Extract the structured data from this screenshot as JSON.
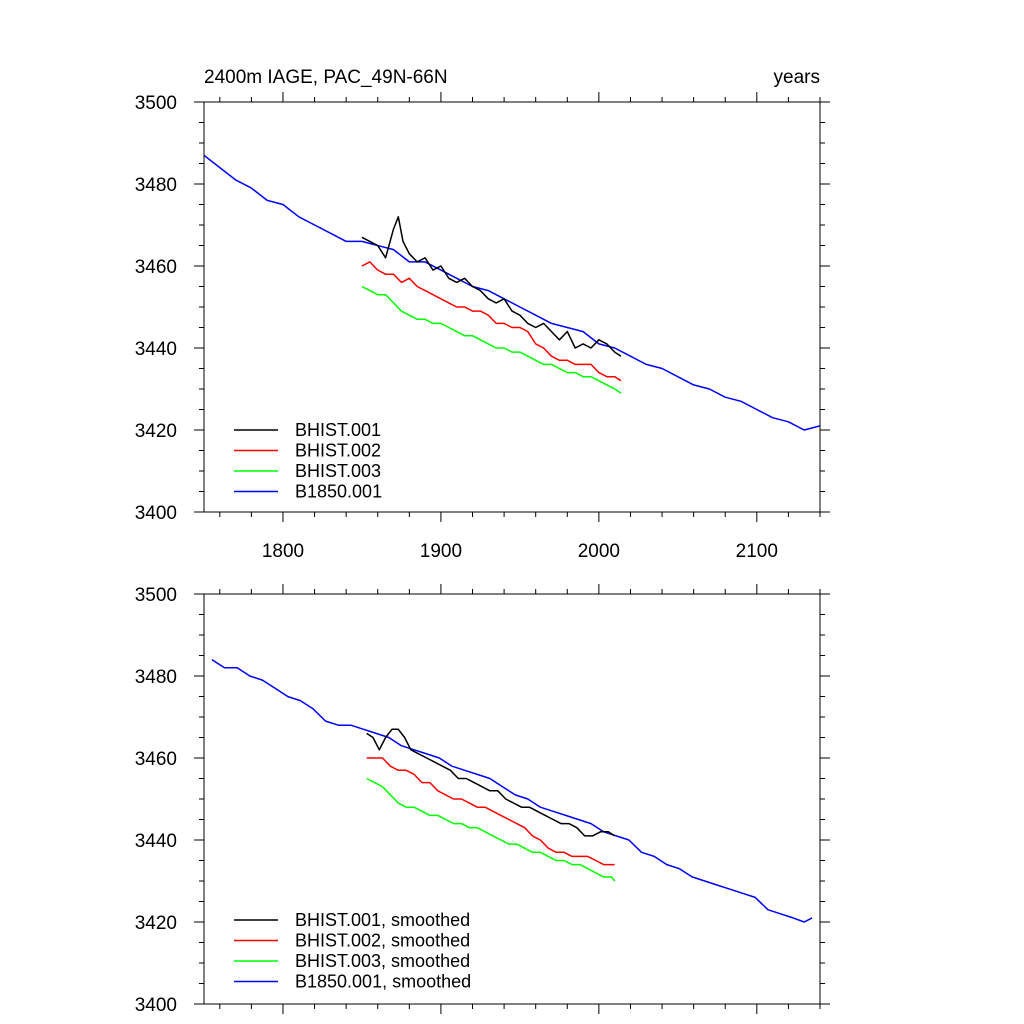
{
  "chart_data": [
    {
      "type": "line",
      "title_left": "2400m IAGE, PAC_49N-66N",
      "title_right": "years",
      "xlim": [
        1750,
        2140
      ],
      "ylim": [
        3400,
        3500
      ],
      "xticks": [
        1800,
        1900,
        2000,
        2100
      ],
      "xticklabels": [
        "1800",
        "1900",
        "2000",
        "2100"
      ],
      "yticks": [
        3400,
        3420,
        3440,
        3460,
        3480,
        3500
      ],
      "yticklabels": [
        "3400",
        "3420",
        "3440",
        "3460",
        "3480",
        "3500"
      ],
      "series": [
        {
          "name": "BHIST.001",
          "color": "#000000",
          "x": [
            1850,
            1855,
            1860,
            1865,
            1870,
            1873,
            1876,
            1880,
            1885,
            1890,
            1895,
            1900,
            1905,
            1910,
            1915,
            1920,
            1925,
            1930,
            1935,
            1940,
            1945,
            1950,
            1955,
            1960,
            1965,
            1970,
            1975,
            1980,
            1985,
            1990,
            1995,
            2000,
            2005,
            2010,
            2014
          ],
          "y": [
            3467,
            3466,
            3465,
            3462,
            3469,
            3472,
            3466,
            3463,
            3461,
            3462,
            3459,
            3460,
            3457,
            3456,
            3457,
            3455,
            3454,
            3452,
            3451,
            3452,
            3449,
            3448,
            3446,
            3445,
            3446,
            3444,
            3442,
            3444,
            3440,
            3441,
            3440,
            3442,
            3441,
            3439,
            3438
          ]
        },
        {
          "name": "BHIST.002",
          "color": "#ff0000",
          "x": [
            1850,
            1855,
            1860,
            1865,
            1870,
            1875,
            1880,
            1885,
            1890,
            1895,
            1900,
            1905,
            1910,
            1915,
            1920,
            1925,
            1930,
            1935,
            1940,
            1945,
            1950,
            1955,
            1960,
            1965,
            1970,
            1975,
            1980,
            1985,
            1990,
            1995,
            2000,
            2005,
            2010,
            2014
          ],
          "y": [
            3460,
            3461,
            3459,
            3458,
            3458,
            3456,
            3457,
            3455,
            3454,
            3453,
            3452,
            3451,
            3450,
            3450,
            3449,
            3449,
            3448,
            3446,
            3446,
            3445,
            3445,
            3444,
            3441,
            3440,
            3438,
            3437,
            3437,
            3436,
            3436,
            3436,
            3434,
            3433,
            3433,
            3432
          ]
        },
        {
          "name": "BHIST.003",
          "color": "#00ff00",
          "x": [
            1850,
            1855,
            1860,
            1865,
            1870,
            1875,
            1880,
            1885,
            1890,
            1895,
            1900,
            1905,
            1910,
            1915,
            1920,
            1925,
            1930,
            1935,
            1940,
            1945,
            1950,
            1955,
            1960,
            1965,
            1970,
            1975,
            1980,
            1985,
            1990,
            1995,
            2000,
            2005,
            2010,
            2014
          ],
          "y": [
            3455,
            3454,
            3453,
            3453,
            3451,
            3449,
            3448,
            3447,
            3447,
            3446,
            3446,
            3445,
            3444,
            3443,
            3443,
            3442,
            3441,
            3440,
            3440,
            3439,
            3439,
            3438,
            3437,
            3436,
            3436,
            3435,
            3434,
            3434,
            3433,
            3433,
            3432,
            3431,
            3430,
            3429
          ]
        },
        {
          "name": "B1850.001",
          "color": "#0000ff",
          "x": [
            1750,
            1760,
            1770,
            1780,
            1790,
            1800,
            1810,
            1820,
            1830,
            1840,
            1850,
            1860,
            1870,
            1880,
            1890,
            1900,
            1910,
            1920,
            1930,
            1940,
            1950,
            1960,
            1970,
            1980,
            1990,
            2000,
            2010,
            2020,
            2030,
            2040,
            2050,
            2060,
            2070,
            2080,
            2090,
            2100,
            2110,
            2120,
            2130,
            2140
          ],
          "y": [
            3487,
            3484,
            3481,
            3479,
            3476,
            3475,
            3472,
            3470,
            3468,
            3466,
            3466,
            3465,
            3464,
            3461,
            3461,
            3459,
            3457,
            3455,
            3454,
            3452,
            3450,
            3448,
            3446,
            3445,
            3444,
            3441,
            3440,
            3438,
            3436,
            3435,
            3433,
            3431,
            3430,
            3428,
            3427,
            3425,
            3423,
            3422,
            3420,
            3421
          ]
        }
      ]
    },
    {
      "type": "line",
      "xlim": [
        1750,
        2140
      ],
      "ylim": [
        3400,
        3500
      ],
      "xticks": [
        1800,
        1900,
        2000,
        2100
      ],
      "yticks": [
        3400,
        3420,
        3440,
        3460,
        3480,
        3500
      ],
      "yticklabels": [
        "3400",
        "3420",
        "3440",
        "3460",
        "3480",
        "3500"
      ],
      "series": [
        {
          "name": "BHIST.001, smoothed",
          "color": "#000000",
          "x": [
            1853,
            1857,
            1861,
            1865,
            1869,
            1873,
            1877,
            1881,
            1886,
            1891,
            1896,
            1901,
            1906,
            1911,
            1916,
            1921,
            1926,
            1931,
            1936,
            1941,
            1946,
            1951,
            1956,
            1961,
            1966,
            1971,
            1976,
            1981,
            1986,
            1991,
            1996,
            2001,
            2006,
            2010
          ],
          "y": [
            3466,
            3465,
            3462,
            3465,
            3467,
            3467,
            3465,
            3462,
            3461,
            3460,
            3459,
            3458,
            3457,
            3455,
            3455,
            3454,
            3453,
            3452,
            3452,
            3450,
            3449,
            3448,
            3448,
            3447,
            3446,
            3445,
            3444,
            3444,
            3443,
            3441,
            3441,
            3442,
            3442,
            3441
          ]
        },
        {
          "name": "BHIST.002, smoothed",
          "color": "#ff0000",
          "x": [
            1853,
            1858,
            1863,
            1868,
            1873,
            1878,
            1883,
            1888,
            1893,
            1898,
            1903,
            1908,
            1913,
            1918,
            1923,
            1928,
            1933,
            1938,
            1943,
            1948,
            1953,
            1958,
            1963,
            1968,
            1973,
            1978,
            1983,
            1988,
            1993,
            1998,
            2003,
            2008,
            2010
          ],
          "y": [
            3460,
            3460,
            3460,
            3458,
            3457,
            3457,
            3456,
            3454,
            3454,
            3452,
            3451,
            3450,
            3450,
            3449,
            3448,
            3448,
            3447,
            3446,
            3445,
            3444,
            3443,
            3441,
            3440,
            3438,
            3437,
            3437,
            3436,
            3436,
            3436,
            3435,
            3434,
            3434,
            3434
          ]
        },
        {
          "name": "BHIST.003, smoothed",
          "color": "#00ff00",
          "x": [
            1853,
            1858,
            1863,
            1868,
            1873,
            1878,
            1883,
            1888,
            1893,
            1898,
            1903,
            1908,
            1913,
            1918,
            1923,
            1928,
            1933,
            1938,
            1943,
            1948,
            1953,
            1958,
            1963,
            1968,
            1973,
            1978,
            1983,
            1988,
            1993,
            1998,
            2003,
            2008,
            2010
          ],
          "y": [
            3455,
            3454,
            3453,
            3451,
            3449,
            3448,
            3448,
            3447,
            3446,
            3446,
            3445,
            3444,
            3444,
            3443,
            3443,
            3442,
            3441,
            3440,
            3439,
            3439,
            3438,
            3437,
            3437,
            3436,
            3435,
            3435,
            3434,
            3434,
            3433,
            3432,
            3431,
            3431,
            3430
          ]
        },
        {
          "name": "B1850.001, smoothed",
          "color": "#0000ff",
          "x": [
            1755,
            1763,
            1771,
            1779,
            1787,
            1795,
            1803,
            1811,
            1819,
            1827,
            1835,
            1843,
            1851,
            1859,
            1867,
            1875,
            1883,
            1891,
            1899,
            1907,
            1915,
            1923,
            1931,
            1939,
            1947,
            1955,
            1963,
            1971,
            1979,
            1987,
            1995,
            2003,
            2011,
            2019,
            2027,
            2035,
            2043,
            2051,
            2059,
            2067,
            2075,
            2083,
            2091,
            2099,
            2107,
            2115,
            2123,
            2130,
            2135
          ],
          "y": [
            3484,
            3482,
            3482,
            3480,
            3479,
            3477,
            3475,
            3474,
            3472,
            3469,
            3468,
            3468,
            3467,
            3466,
            3465,
            3463,
            3462,
            3461,
            3460,
            3458,
            3457,
            3456,
            3455,
            3453,
            3451,
            3450,
            3448,
            3447,
            3446,
            3445,
            3444,
            3442,
            3441,
            3440,
            3437,
            3436,
            3434,
            3433,
            3431,
            3430,
            3429,
            3428,
            3427,
            3426,
            3423,
            3422,
            3421,
            3420,
            3421
          ]
        }
      ]
    }
  ]
}
